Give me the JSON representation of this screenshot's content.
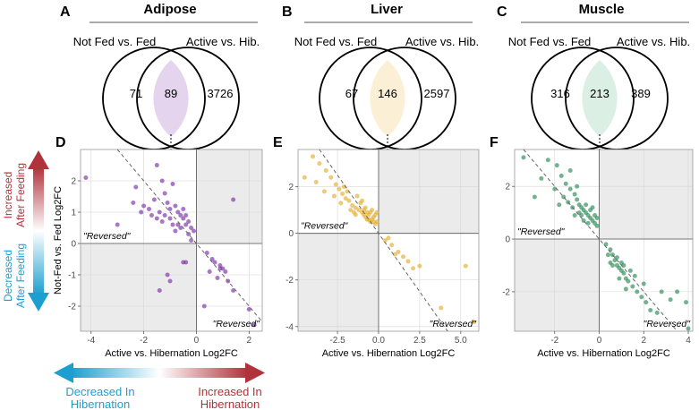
{
  "colors": {
    "adipose": "#7b2fa6",
    "adipose_fill": "#e4d4ee",
    "liver": "#e3ae2e",
    "liver_fill": "#fbf0d6",
    "muscle": "#2a8a55",
    "muscle_fill": "#dcefe4",
    "increase": "#b0333b",
    "decrease": "#1c9fd0"
  },
  "legend": {
    "vertical_top": [
      "Increased",
      "After Feeding"
    ],
    "vertical_bottom": [
      "Decreased",
      "After Feeding"
    ],
    "horizontal_left": [
      "Decreased In",
      "Hibernation"
    ],
    "horizontal_right": [
      "Increased In",
      "Hibernation"
    ]
  },
  "venn": [
    {
      "letter": "A",
      "title": "Adipose",
      "left_label": "Not Fed vs. Fed",
      "right_label": "Active vs. Hib.",
      "left_only": "71",
      "overlap": "89",
      "right_only": "3726"
    },
    {
      "letter": "B",
      "title": "Liver",
      "left_label": "Not Fed vs. Fed",
      "right_label": "Active vs. Hib.",
      "left_only": "67",
      "overlap": "146",
      "right_only": "2597"
    },
    {
      "letter": "C",
      "title": "Muscle",
      "left_label": "Not Fed vs. Fed",
      "right_label": "Active vs. Hib.",
      "left_only": "316",
      "overlap": "213",
      "right_only": "389"
    }
  ],
  "chart_data": [
    {
      "letter": "D",
      "tissue": "Adipose",
      "type": "scatter",
      "xlabel": "Active vs. Hibernation Log2FC",
      "ylabel": "Not-Fed vs. Fed Log2FC",
      "xlim": [
        -4.4,
        2.5
      ],
      "ylim": [
        -2.8,
        3.0
      ],
      "xticks": [
        -4,
        -2,
        0,
        2
      ],
      "xticklabels": [
        "-4",
        "-2",
        "0",
        "2"
      ],
      "yticks": [
        -2,
        -1,
        0,
        1,
        2
      ],
      "yticklabels": [
        "-2",
        "-1",
        "0",
        "1",
        "2"
      ],
      "diagonal": true,
      "annotation": "\"Reversed\"",
      "points": [
        [
          -4.2,
          2.1
        ],
        [
          -2.3,
          1.8
        ],
        [
          -1.5,
          2.5
        ],
        [
          -1.3,
          2.0
        ],
        [
          -1.6,
          1.4
        ],
        [
          -2.4,
          1.3
        ],
        [
          -2.0,
          1.2
        ],
        [
          -1.8,
          1.1
        ],
        [
          -1.4,
          1.0
        ],
        [
          -1.0,
          0.8
        ],
        [
          -1.7,
          0.9
        ],
        [
          -1.2,
          1.6
        ],
        [
          -0.9,
          1.9
        ],
        [
          -1.1,
          1.3
        ],
        [
          -0.8,
          1.2
        ],
        [
          -0.7,
          1.0
        ],
        [
          -0.6,
          0.9
        ],
        [
          -0.5,
          0.8
        ],
        [
          -0.4,
          0.6
        ],
        [
          -0.3,
          0.7
        ],
        [
          -0.2,
          0.5
        ],
        [
          -0.1,
          0.4
        ],
        [
          -0.6,
          0.5
        ],
        [
          -0.9,
          0.6
        ],
        [
          -1.3,
          0.7
        ],
        [
          -0.5,
          1.1
        ],
        [
          -0.8,
          0.4
        ],
        [
          -1.0,
          1.1
        ],
        [
          -0.3,
          0.3
        ],
        [
          -0.2,
          0.1
        ],
        [
          -0.7,
          0.6
        ],
        [
          -1.5,
          0.8
        ],
        [
          -2.1,
          1.0
        ],
        [
          -3.0,
          0.6
        ],
        [
          -1.2,
          0.9
        ],
        [
          -0.4,
          0.9
        ],
        [
          1.4,
          1.4
        ],
        [
          -0.4,
          -0.6
        ],
        [
          -0.5,
          -0.6
        ],
        [
          -1.4,
          -1.5
        ],
        [
          -1.1,
          -1.0
        ],
        [
          -1.0,
          -1.2
        ],
        [
          0.4,
          -0.3
        ],
        [
          0.6,
          -0.5
        ],
        [
          0.5,
          -0.9
        ],
        [
          0.7,
          -0.6
        ],
        [
          0.9,
          -0.8
        ],
        [
          0.8,
          -1.1
        ],
        [
          1.0,
          -0.8
        ],
        [
          1.1,
          -0.9
        ],
        [
          1.2,
          -1.2
        ],
        [
          1.4,
          -1.5
        ],
        [
          0.3,
          -2.0
        ],
        [
          2.0,
          -2.1
        ],
        [
          2.2,
          -2.6
        ],
        [
          0.9,
          -0.7
        ]
      ]
    },
    {
      "letter": "E",
      "tissue": "Liver",
      "type": "scatter",
      "xlabel": "Active vs. Hibernation Log2FC",
      "ylabel": "",
      "xlim": [
        -4.9,
        6.1
      ],
      "ylim": [
        -4.2,
        3.6
      ],
      "xticks": [
        -2.5,
        0,
        2.5,
        5
      ],
      "xticklabels": [
        "-2.5",
        "0.0",
        "2.5",
        "5.0"
      ],
      "yticks": [
        -4,
        -2,
        0,
        2
      ],
      "yticklabels": [
        "-4",
        "-2",
        "0",
        "2"
      ],
      "diagonal": true,
      "annotation": "\"Reversed\"",
      "points": [
        [
          -4.0,
          3.3
        ],
        [
          -3.6,
          3.0
        ],
        [
          -3.2,
          2.7
        ],
        [
          -2.9,
          2.4
        ],
        [
          -2.6,
          2.1
        ],
        [
          -2.4,
          1.9
        ],
        [
          -2.2,
          1.7
        ],
        [
          -2.0,
          1.5
        ],
        [
          -1.8,
          1.4
        ],
        [
          -1.6,
          1.2
        ],
        [
          -1.4,
          1.1
        ],
        [
          -1.2,
          1.0
        ],
        [
          -1.0,
          0.9
        ],
        [
          -0.9,
          0.8
        ],
        [
          -0.8,
          0.7
        ],
        [
          -0.7,
          0.6
        ],
        [
          -0.6,
          0.8
        ],
        [
          -0.5,
          0.5
        ],
        [
          -0.4,
          0.6
        ],
        [
          -0.3,
          0.7
        ],
        [
          -0.2,
          0.4
        ],
        [
          -0.1,
          0.5
        ],
        [
          -1.1,
          1.3
        ],
        [
          -1.5,
          0.9
        ],
        [
          -2.1,
          2.0
        ],
        [
          -2.7,
          1.6
        ],
        [
          -3.3,
          1.8
        ],
        [
          -1.3,
          1.6
        ],
        [
          -0.8,
          1.1
        ],
        [
          -0.5,
          0.9
        ],
        [
          -4.5,
          2.4
        ],
        [
          -3.8,
          2.2
        ],
        [
          -2.3,
          1.3
        ],
        [
          -1.9,
          1.8
        ],
        [
          -1.7,
          1.0
        ],
        [
          -1.4,
          0.8
        ],
        [
          -0.9,
          1.0
        ],
        [
          -0.6,
          0.6
        ],
        [
          -0.4,
          1.0
        ],
        [
          -0.2,
          0.8
        ],
        [
          -1.0,
          1.4
        ],
        [
          -0.7,
          0.9
        ],
        [
          -0.3,
          0.5
        ],
        [
          0.4,
          -0.3
        ],
        [
          0.8,
          -0.5
        ],
        [
          1.2,
          -0.8
        ],
        [
          1.5,
          -1.0
        ],
        [
          1.8,
          -1.2
        ],
        [
          2.1,
          -1.5
        ],
        [
          2.5,
          -1.4
        ],
        [
          0.6,
          -0.2
        ],
        [
          1.0,
          -0.9
        ],
        [
          3.8,
          -3.2
        ],
        [
          5.3,
          -1.4
        ],
        [
          5.8,
          -3.8
        ],
        [
          -0.1,
          0.9
        ]
      ]
    },
    {
      "letter": "F",
      "tissue": "Muscle",
      "type": "scatter",
      "xlabel": "Active vs. Hibernation Log2FC",
      "ylabel": "",
      "xlim": [
        -3.8,
        4.2
      ],
      "ylim": [
        -3.5,
        3.4
      ],
      "xticks": [
        -2,
        0,
        2,
        4
      ],
      "xticklabels": [
        "-2",
        "0",
        "2",
        "4"
      ],
      "yticks": [
        -2,
        0,
        2
      ],
      "yticklabels": [
        "-2",
        "0",
        "2"
      ],
      "diagonal": true,
      "annotation": "\"Reversed\"",
      "points": [
        [
          -3.4,
          3.1
        ],
        [
          -2.3,
          3.0
        ],
        [
          -1.9,
          2.8
        ],
        [
          -1.7,
          2.4
        ],
        [
          -2.6,
          2.3
        ],
        [
          -1.5,
          2.1
        ],
        [
          -1.3,
          1.9
        ],
        [
          -1.1,
          1.7
        ],
        [
          -1.0,
          1.5
        ],
        [
          -0.9,
          1.3
        ],
        [
          -0.8,
          1.2
        ],
        [
          -0.7,
          1.1
        ],
        [
          -0.6,
          1.0
        ],
        [
          -0.5,
          0.9
        ],
        [
          -0.4,
          0.8
        ],
        [
          -0.3,
          0.7
        ],
        [
          -0.2,
          0.6
        ],
        [
          -0.1,
          0.5
        ],
        [
          -1.2,
          1.2
        ],
        [
          -1.6,
          1.6
        ],
        [
          -2.0,
          1.9
        ],
        [
          -0.9,
          1.0
        ],
        [
          -0.6,
          1.3
        ],
        [
          -0.4,
          1.1
        ],
        [
          -1.4,
          1.4
        ],
        [
          -2.9,
          1.6
        ],
        [
          -1.8,
          1.3
        ],
        [
          -0.2,
          0.9
        ],
        [
          -0.5,
          0.6
        ],
        [
          -1.1,
          0.9
        ],
        [
          -0.8,
          0.9
        ],
        [
          -0.3,
          1.2
        ],
        [
          -1.0,
          2.0
        ],
        [
          -1.3,
          2.6
        ],
        [
          -0.7,
          0.7
        ],
        [
          -0.1,
          0.8
        ],
        [
          0.3,
          -0.2
        ],
        [
          0.5,
          -0.4
        ],
        [
          0.6,
          -0.6
        ],
        [
          0.7,
          -0.8
        ],
        [
          0.8,
          -1.0
        ],
        [
          0.9,
          -1.1
        ],
        [
          1.0,
          -1.2
        ],
        [
          1.1,
          -1.3
        ],
        [
          1.2,
          -1.5
        ],
        [
          1.3,
          -1.6
        ],
        [
          1.5,
          -1.8
        ],
        [
          1.7,
          -2.0
        ],
        [
          1.9,
          -2.2
        ],
        [
          2.1,
          -2.4
        ],
        [
          2.3,
          -2.7
        ],
        [
          2.6,
          -2.8
        ],
        [
          0.4,
          -0.6
        ],
        [
          0.8,
          -0.7
        ],
        [
          1.0,
          -0.9
        ],
        [
          1.4,
          -1.2
        ],
        [
          0.6,
          -1.0
        ],
        [
          1.2,
          -1.9
        ],
        [
          1.6,
          -1.4
        ],
        [
          2.0,
          -1.7
        ],
        [
          2.8,
          -2.0
        ],
        [
          3.2,
          -2.3
        ],
        [
          3.5,
          -2.0
        ],
        [
          3.9,
          -2.4
        ],
        [
          4.0,
          -3.4
        ],
        [
          0.5,
          -0.9
        ],
        [
          0.9,
          -1.5
        ],
        [
          1.1,
          -1.0
        ]
      ]
    }
  ]
}
